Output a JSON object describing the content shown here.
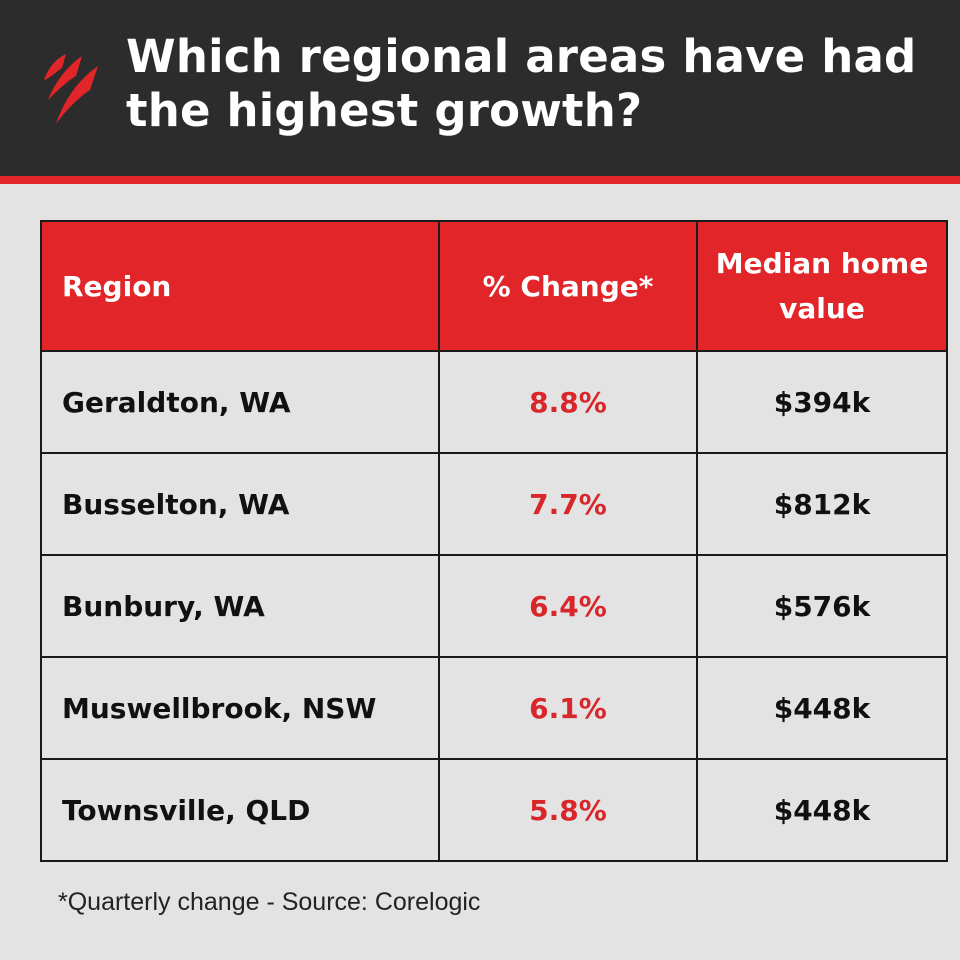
{
  "header": {
    "title": "Which regional areas have had the highest growth?",
    "logo_icon": "sbs-logo-icon",
    "background_color": "#2c2c2c",
    "accent_color": "#e12528"
  },
  "table": {
    "columns": [
      "Region",
      "% Change*",
      "Median home value"
    ],
    "rows": [
      {
        "region": "Geraldton, WA",
        "change": "8.8%",
        "value": "$394k"
      },
      {
        "region": "Busselton, WA",
        "change": "7.7%",
        "value": "$812k"
      },
      {
        "region": "Bunbury, WA",
        "change": "6.4%",
        "value": "$576k"
      },
      {
        "region": "Muswellbrook, NSW",
        "change": "6.1%",
        "value": "$448k"
      },
      {
        "region": "Townsville, QLD",
        "change": "5.8%",
        "value": "$448k"
      }
    ],
    "header_color": "#e12528",
    "change_color": "#d8262a"
  },
  "footnote": "*Quarterly change - Source: Corelogic"
}
